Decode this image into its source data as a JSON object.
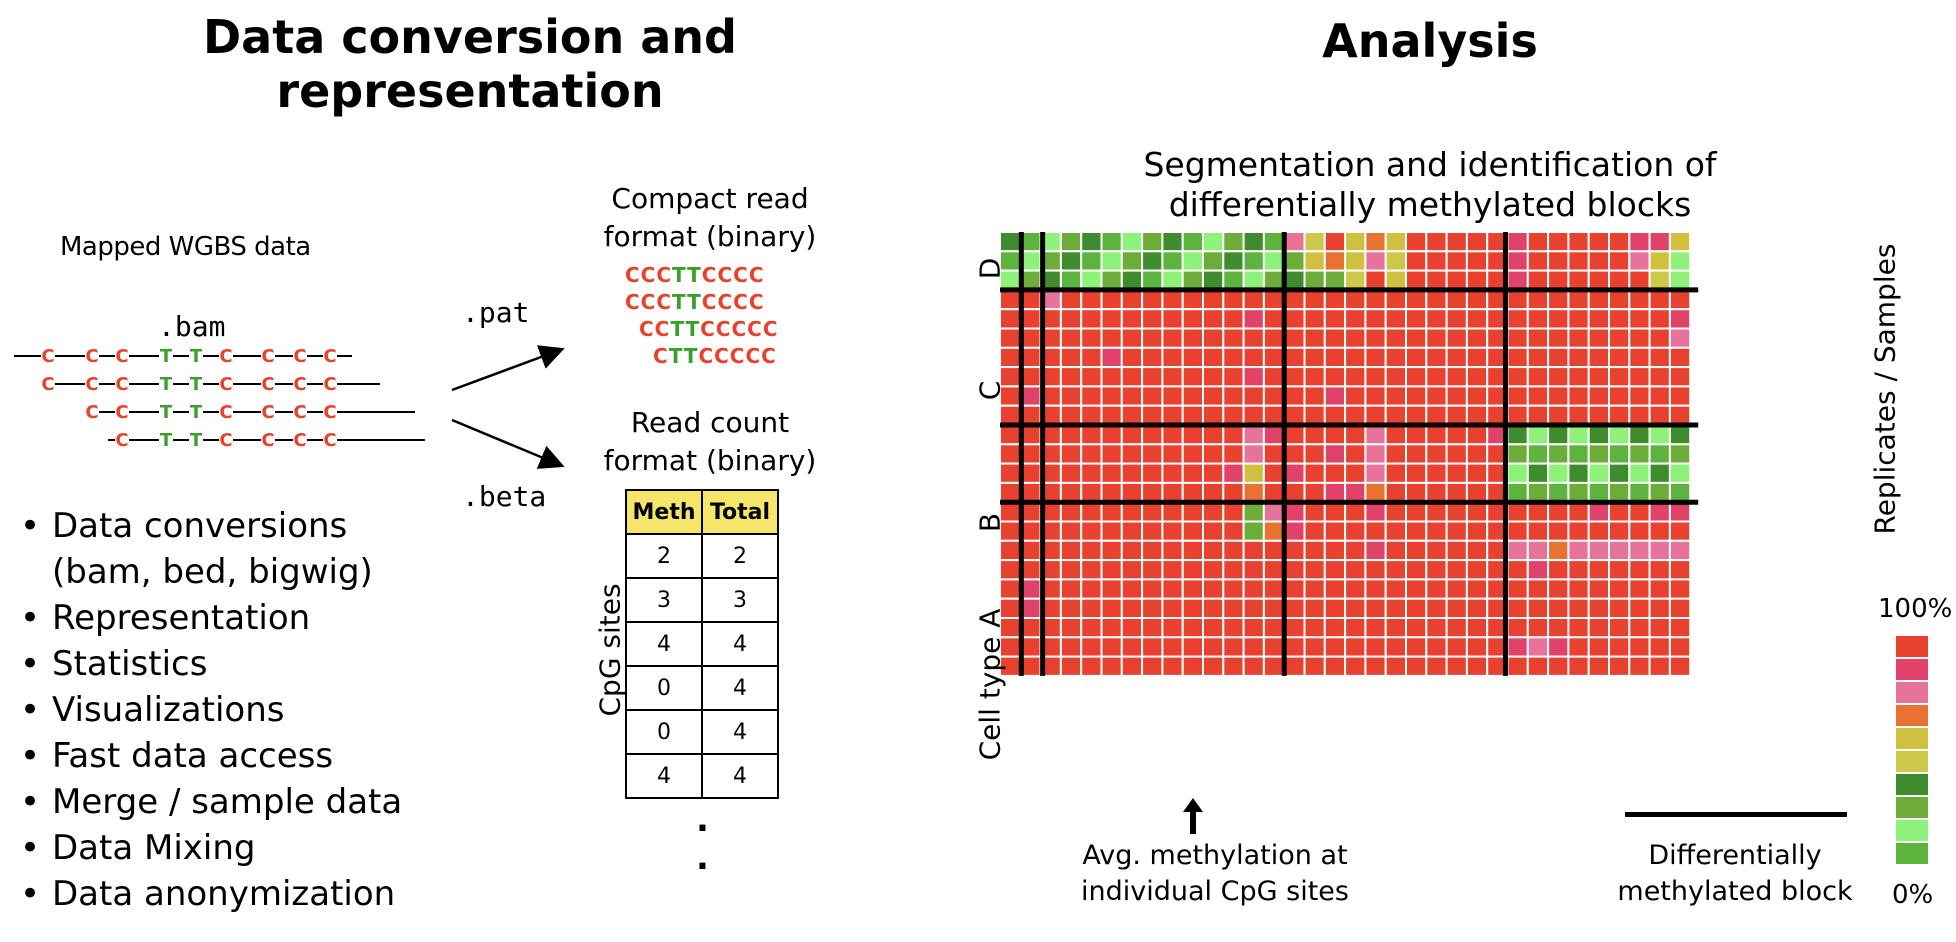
{
  "left_panel": {
    "title_line1": "Data conversion and",
    "title_line2": "representation",
    "mapped_label": "Mapped WGBS data",
    "bam_label": ".bam",
    "pat_label": ".pat",
    "beta_label": ".beta",
    "compact_line1": "Compact read",
    "compact_line2": "format (binary)",
    "pat_reads": [
      {
        "pre": "CCC",
        "mid": "TT",
        "post": "CCCC"
      },
      {
        "pre": "CCC",
        "mid": "TT",
        "post": "CCCC"
      },
      {
        "pre": "CC",
        "mid": "TT",
        "post": "CCCCC"
      },
      {
        "pre": "C",
        "mid": "TT",
        "post": "CCCCC"
      }
    ],
    "count_line1": "Read count",
    "count_line2": "format (binary)",
    "cpg_sites_label": "CpG sites",
    "count_table": {
      "headers": [
        "Meth",
        "Total"
      ],
      "rows": [
        [
          "2",
          "2"
        ],
        [
          "3",
          "3"
        ],
        [
          "4",
          "4"
        ],
        [
          "0",
          "4"
        ],
        [
          "0",
          "4"
        ],
        [
          "4",
          "4"
        ]
      ]
    },
    "ellipsis": ".",
    "features": [
      "Data conversions",
      "(bam, bed, bigwig)",
      "Representation",
      "Statistics",
      "Visualizations",
      "Fast data access",
      "Merge / sample data",
      "Data Mixing",
      "Data anonymization"
    ],
    "reads": [
      {
        "letters": [
          "C",
          "C",
          "C",
          "T",
          "T",
          "C",
          "C",
          "C",
          "C"
        ]
      },
      {
        "letters": [
          "C",
          "C",
          "C",
          "T",
          "T",
          "C",
          "C",
          "C",
          "C"
        ]
      },
      {
        "letters": [
          "C",
          "C",
          "T",
          "T",
          "C",
          "C",
          "C",
          "C"
        ]
      },
      {
        "letters": [
          "C",
          "T",
          "T",
          "C",
          "C",
          "C",
          "C"
        ]
      }
    ]
  },
  "right_panel": {
    "title": "Analysis",
    "subtitle_line1": "Segmentation and identification of",
    "subtitle_line2": "differentially methylated blocks",
    "group_labels": [
      "D",
      "C",
      "B",
      "Cell type A"
    ],
    "y_axis_label": "Replicates / Samples",
    "legend_top": "100%",
    "legend_bottom": "0%",
    "legend_colors": [
      "#e8412f",
      "#e0426a",
      "#e8739a",
      "#ea7231",
      "#cfc13f",
      "#cbc84a",
      "#3f8c2f",
      "#6cad3a",
      "#8ef27a",
      "#5cb33e"
    ],
    "arrow_label_line1": "Avg. methylation at",
    "arrow_label_line2": "individual CpG sites",
    "block_label_line1": "Differentially",
    "block_label_line2": "methylated block"
  },
  "colors": {
    "red": "#e8412f",
    "green": "#3aa02a",
    "highlight": "#f5e66b"
  }
}
